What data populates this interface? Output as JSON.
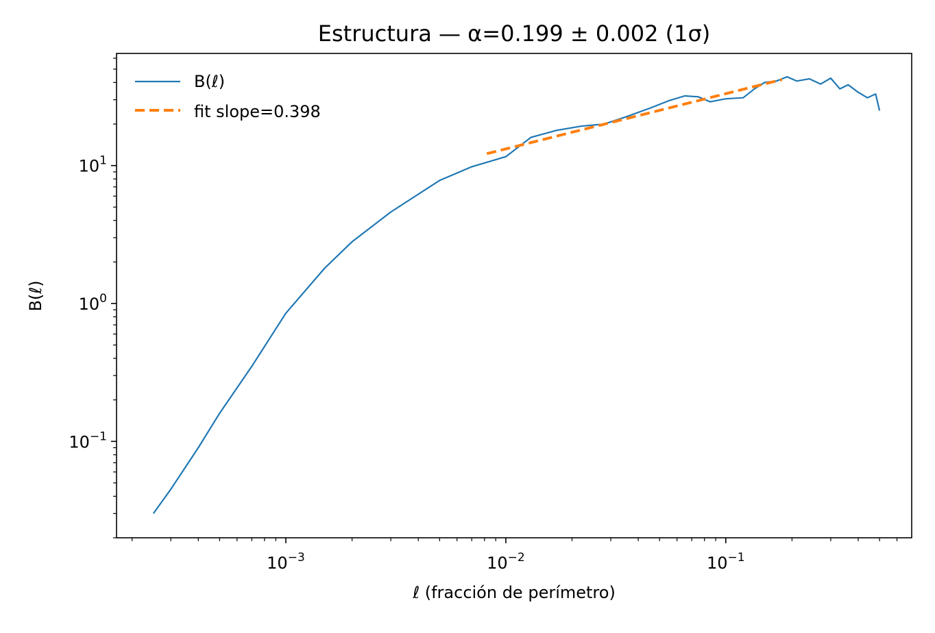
{
  "chart_data": {
    "type": "line",
    "title": "Estructura — α=0.199 ± 0.002 (1σ)",
    "xlabel": "ℓ (fracción de perímetro)",
    "ylabel": "B(ℓ)",
    "xscale": "log",
    "yscale": "log",
    "xlim": [
      0.00017,
      0.7
    ],
    "ylim": [
      0.02,
      65
    ],
    "grid": false,
    "legend_position": "top-left",
    "x_ticks": [
      {
        "base": "10",
        "exp": "−3",
        "value": 0.001
      },
      {
        "base": "10",
        "exp": "−2",
        "value": 0.01
      },
      {
        "base": "10",
        "exp": "−1",
        "value": 0.1
      }
    ],
    "y_ticks": [
      {
        "base": "10",
        "exp": "−1",
        "value": 0.1
      },
      {
        "base": "10",
        "exp": "0",
        "value": 1
      },
      {
        "base": "10",
        "exp": "1",
        "value": 10
      }
    ],
    "series": [
      {
        "name": "B(ℓ)",
        "color": "#1f77b4",
        "style": "solid",
        "x": [
          0.00025,
          0.0003,
          0.0004,
          0.0005,
          0.0007,
          0.001,
          0.0015,
          0.002,
          0.003,
          0.005,
          0.007,
          0.01,
          0.013,
          0.017,
          0.022,
          0.028,
          0.035,
          0.045,
          0.055,
          0.065,
          0.075,
          0.085,
          0.1,
          0.12,
          0.135,
          0.15,
          0.17,
          0.19,
          0.21,
          0.24,
          0.27,
          0.3,
          0.33,
          0.36,
          0.4,
          0.44,
          0.48,
          0.5
        ],
        "y": [
          0.03,
          0.045,
          0.09,
          0.16,
          0.35,
          0.85,
          1.8,
          2.8,
          4.6,
          7.8,
          9.8,
          11.6,
          16.0,
          18.0,
          19.3,
          20.0,
          22.5,
          26.0,
          29.5,
          32.0,
          31.5,
          29.0,
          30.5,
          31.0,
          36.0,
          40.0,
          41.0,
          44.0,
          41.0,
          42.5,
          39.0,
          43.0,
          36.0,
          38.5,
          34.0,
          31.0,
          33.0,
          25.0
        ]
      },
      {
        "name": "fit slope=0.398",
        "color": "#ff7f0e",
        "style": "dashed",
        "x": [
          0.0082,
          0.18
        ],
        "y": [
          12.2,
          42.0
        ]
      }
    ]
  }
}
